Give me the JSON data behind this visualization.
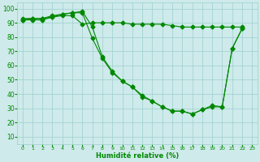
{
  "xlabel": "Humidité relative (%)",
  "background_color": "#ceeaea",
  "grid_color": "#9ecece",
  "line_color": "#008800",
  "ylim": [
    5,
    104
  ],
  "xlim": [
    -0.5,
    23.5
  ],
  "yticks": [
    10,
    20,
    30,
    40,
    50,
    60,
    70,
    80,
    90,
    100
  ],
  "xticks": [
    0,
    1,
    2,
    3,
    4,
    5,
    6,
    7,
    8,
    9,
    10,
    11,
    12,
    13,
    14,
    15,
    16,
    17,
    18,
    19,
    20,
    21,
    22,
    23
  ],
  "line1_x": [
    0,
    1,
    2,
    3,
    4,
    5,
    6,
    7,
    8,
    9,
    10,
    11,
    12,
    13,
    14,
    15,
    16,
    17,
    18,
    19,
    20,
    21,
    22
  ],
  "line1_y": [
    93,
    93,
    93,
    95,
    96,
    97,
    98,
    87,
    66,
    56,
    49,
    45,
    39,
    35,
    31,
    28,
    28,
    26,
    29,
    32,
    31,
    72,
    86
  ],
  "line2_x": [
    0,
    1,
    2,
    3,
    4,
    5,
    6,
    7,
    8,
    9,
    10,
    11,
    12,
    13,
    14,
    15,
    16,
    17,
    18,
    19,
    20,
    21,
    22
  ],
  "line2_y": [
    92,
    93,
    93,
    94,
    96,
    97,
    97,
    79,
    65,
    55,
    49,
    45,
    38,
    35,
    31,
    28,
    28,
    26,
    29,
    31,
    31,
    72,
    86
  ],
  "line3_x": [
    0,
    1,
    2,
    3,
    4,
    5,
    6,
    7,
    8,
    9,
    10,
    11,
    12,
    13,
    14,
    15,
    16,
    17,
    18,
    19,
    20,
    21,
    22
  ],
  "line3_y": [
    92,
    92,
    92,
    94,
    95,
    95,
    89,
    90,
    90,
    90,
    90,
    89,
    89,
    89,
    89,
    88,
    87,
    87,
    87,
    87,
    87,
    87,
    87
  ]
}
